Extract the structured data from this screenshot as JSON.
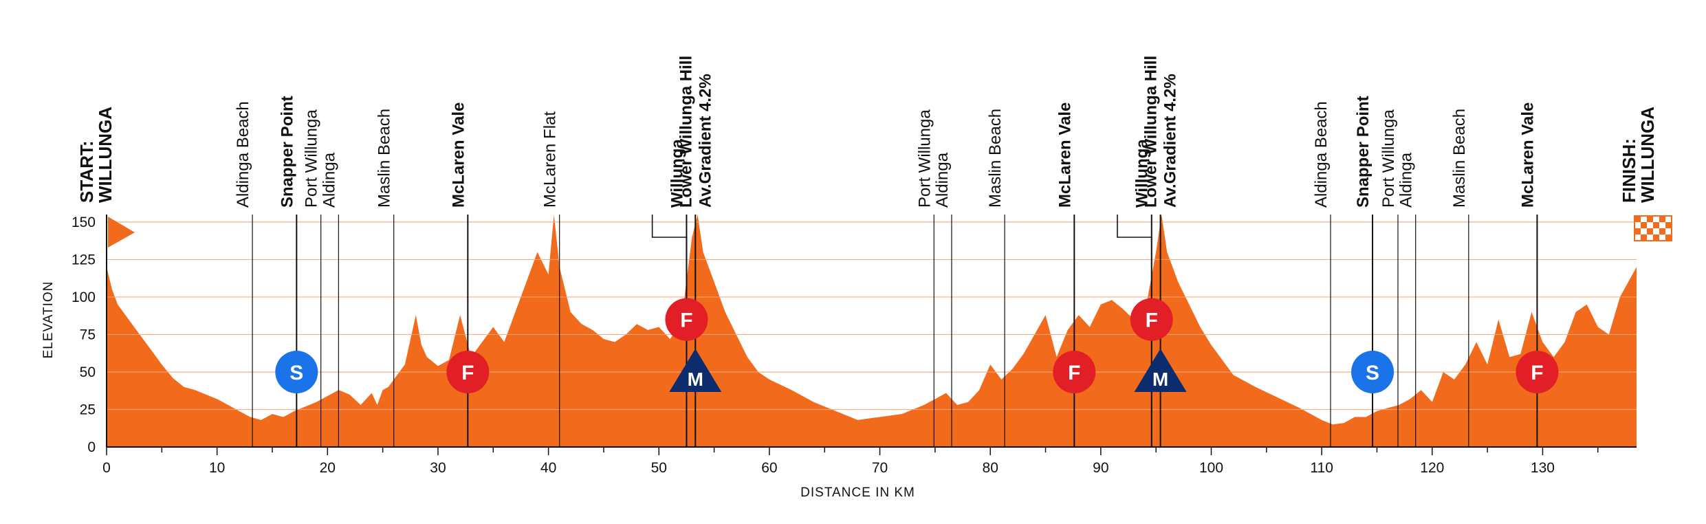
{
  "chart_data": {
    "type": "area",
    "xlabel": "DISTANCE IN KM",
    "ylabel": "ELEVATION",
    "xlim": [
      0,
      138.5
    ],
    "ylim": [
      0,
      155
    ],
    "x_ticks": [
      0,
      10,
      20,
      30,
      40,
      50,
      60,
      70,
      80,
      90,
      100,
      110,
      120,
      130
    ],
    "y_ticks": [
      0,
      25,
      50,
      75,
      100,
      125,
      150
    ],
    "grid": true,
    "series": [
      {
        "x": [
          0,
          0.5,
          1,
          2,
          3,
          4,
          5,
          6,
          7,
          8,
          9,
          10,
          11,
          12,
          13,
          14,
          15,
          16,
          17,
          18,
          19,
          20,
          21,
          22,
          23,
          24,
          24.5,
          25,
          25.5,
          26,
          27,
          28,
          28.5,
          29,
          30,
          31,
          32,
          33,
          34,
          35,
          36,
          37,
          38,
          39,
          40,
          40.5,
          41,
          42,
          43,
          44,
          45,
          46,
          47,
          48,
          49,
          50,
          51,
          52,
          53,
          53.5,
          54,
          55,
          56,
          57,
          58,
          59,
          60,
          62,
          64,
          66,
          68,
          70,
          72,
          74,
          75,
          76,
          77,
          78,
          79,
          80,
          81,
          82,
          83,
          84,
          85,
          86,
          87,
          88,
          89,
          90,
          91,
          92,
          93,
          94,
          95,
          95.5,
          96,
          97,
          98,
          99,
          100,
          101,
          102,
          104,
          106,
          108,
          110,
          111,
          112,
          113,
          114,
          115,
          116,
          117,
          118,
          119,
          120,
          121,
          122,
          123,
          124,
          125,
          126,
          127,
          128,
          129,
          130,
          131,
          132,
          133,
          134,
          135,
          136,
          137,
          138.5
        ],
        "values": [
          120,
          105,
          95,
          85,
          75,
          65,
          55,
          46,
          40,
          38,
          35,
          32,
          28,
          24,
          20,
          18,
          22,
          20,
          24,
          27,
          30,
          34,
          38,
          35,
          28,
          36,
          28,
          38,
          40,
          45,
          55,
          88,
          68,
          60,
          54,
          58,
          88,
          60,
          70,
          80,
          70,
          90,
          110,
          130,
          115,
          155,
          120,
          90,
          82,
          78,
          72,
          70,
          75,
          82,
          78,
          80,
          72,
          82,
          140,
          155,
          130,
          110,
          90,
          75,
          60,
          50,
          45,
          38,
          30,
          24,
          18,
          20,
          22,
          28,
          32,
          36,
          28,
          30,
          38,
          55,
          45,
          52,
          62,
          75,
          88,
          60,
          78,
          88,
          80,
          95,
          98,
          92,
          85,
          90,
          130,
          155,
          130,
          110,
          95,
          80,
          68,
          58,
          48,
          40,
          33,
          26,
          18,
          15,
          16,
          20,
          20,
          24,
          26,
          28,
          32,
          38,
          30,
          50,
          45,
          55,
          70,
          55,
          85,
          60,
          62,
          90,
          70,
          60,
          70,
          90,
          95,
          80,
          75,
          100,
          120
        ]
      }
    ],
    "waypoints": [
      {
        "km": 13.2,
        "label": "Aldinga Beach",
        "bold": false
      },
      {
        "km": 17.2,
        "label": "Snapper Point",
        "bold": true
      },
      {
        "km": 19.4,
        "label": "Port Willunga",
        "bold": false
      },
      {
        "km": 21.0,
        "label": "Aldinga",
        "bold": false
      },
      {
        "km": 26.0,
        "label": "Maslin Beach",
        "bold": false
      },
      {
        "km": 32.7,
        "label": "McLaren Vale",
        "bold": true
      },
      {
        "km": 41.0,
        "label": "McLaren Flat",
        "bold": false
      },
      {
        "km": 52.5,
        "label": "Willunga",
        "bold": true
      },
      {
        "km": 53.3,
        "label": "Lower Willunga Hill",
        "bold": true
      },
      {
        "km": 53.3,
        "label": "Av.Gradient 4.2%",
        "bold": true
      },
      {
        "km": 74.9,
        "label": "Port Willunga",
        "bold": false
      },
      {
        "km": 76.5,
        "label": "Aldinga",
        "bold": false
      },
      {
        "km": 81.3,
        "label": "Maslin Beach",
        "bold": false
      },
      {
        "km": 87.6,
        "label": "McLaren Vale",
        "bold": true
      },
      {
        "km": 94.6,
        "label": "Willunga",
        "bold": true
      },
      {
        "km": 95.4,
        "label": "Lower Willunga Hill",
        "bold": true
      },
      {
        "km": 95.4,
        "label": "Av.Gradient 4.2%",
        "bold": true
      },
      {
        "km": 110.8,
        "label": "Aldinga Beach",
        "bold": false
      },
      {
        "km": 114.6,
        "label": "Snapper Point",
        "bold": true
      },
      {
        "km": 116.9,
        "label": "Port Willunga",
        "bold": false
      },
      {
        "km": 118.5,
        "label": "Aldinga",
        "bold": false
      },
      {
        "km": 123.3,
        "label": "Maslin Beach",
        "bold": false
      },
      {
        "km": 129.5,
        "label": "McLaren Vale",
        "bold": true
      }
    ],
    "start_label": [
      "START:",
      "WILLUNGA"
    ],
    "finish_label": [
      "FINISH:",
      "WILLUNGA"
    ],
    "markers": [
      {
        "km": 17.2,
        "elev": 50,
        "letter": "S",
        "shape": "circle",
        "color": "#1a73e8"
      },
      {
        "km": 32.7,
        "elev": 50,
        "letter": "F",
        "shape": "circle",
        "color": "#e21f26"
      },
      {
        "km": 52.5,
        "elev": 85,
        "letter": "F",
        "shape": "circle",
        "color": "#e21f26"
      },
      {
        "km": 53.3,
        "elev": 50,
        "letter": "M",
        "shape": "triangle",
        "color": "#0d2c6e"
      },
      {
        "km": 87.6,
        "elev": 50,
        "letter": "F",
        "shape": "circle",
        "color": "#e21f26"
      },
      {
        "km": 94.6,
        "elev": 85,
        "letter": "F",
        "shape": "circle",
        "color": "#e21f26"
      },
      {
        "km": 95.4,
        "elev": 50,
        "letter": "M",
        "shape": "triangle",
        "color": "#0d2c6e"
      },
      {
        "km": 114.6,
        "elev": 50,
        "letter": "S",
        "shape": "circle",
        "color": "#1a73e8"
      },
      {
        "km": 129.5,
        "elev": 50,
        "letter": "F",
        "shape": "circle",
        "color": "#e21f26"
      }
    ],
    "colors": {
      "area": "#f26a1b",
      "grid": "#f7a875",
      "axis": "#111111",
      "sprint": "#1a73e8",
      "finish_point": "#e21f26",
      "mountain": "#0d2c6e"
    }
  }
}
